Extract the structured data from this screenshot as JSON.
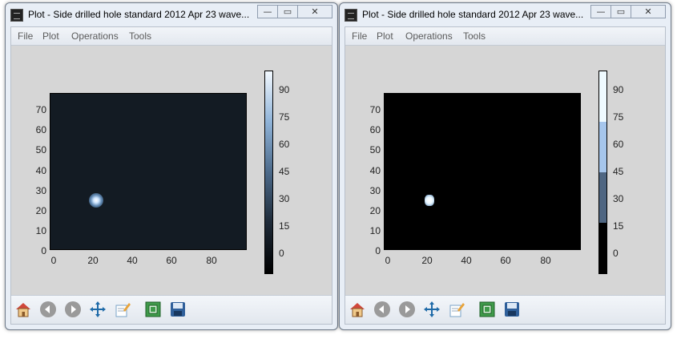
{
  "windows": [
    {
      "title": "Plot - Side drilled hole standard 2012 Apr 23 wave...",
      "controls": {
        "minimize": "—",
        "restore": "▭",
        "close": "✕"
      },
      "menu": [
        "File",
        "Plot",
        "Operations",
        "Tools"
      ],
      "plot": {
        "y_ticks": [
          "70",
          "60",
          "50",
          "40",
          "30",
          "20",
          "10",
          "0"
        ],
        "x_ticks": [
          "0",
          "20",
          "40",
          "60",
          "80"
        ],
        "colorbar_ticks": [
          "90",
          "75",
          "60",
          "45",
          "30",
          "15",
          "0"
        ]
      },
      "toolbar": [
        "home-icon",
        "back-icon",
        "forward-icon",
        "pan-icon",
        "edit-icon",
        "zoom-fit-icon",
        "save-icon"
      ]
    },
    {
      "title": "Plot - Side drilled hole standard 2012 Apr 23 wave...",
      "controls": {
        "minimize": "—",
        "restore": "▭",
        "close": "✕"
      },
      "menu": [
        "File",
        "Plot",
        "Operations",
        "Tools"
      ],
      "plot": {
        "y_ticks": [
          "70",
          "60",
          "50",
          "40",
          "30",
          "20",
          "10",
          "0"
        ],
        "x_ticks": [
          "0",
          "20",
          "40",
          "60",
          "80"
        ],
        "colorbar_ticks": [
          "90",
          "75",
          "60",
          "45",
          "30",
          "15",
          "0"
        ]
      },
      "toolbar": [
        "home-icon",
        "back-icon",
        "forward-icon",
        "pan-icon",
        "edit-icon",
        "zoom-fit-icon",
        "save-icon"
      ]
    }
  ],
  "colors": {
    "plot_bg_left": "#131b23",
    "plot_bg_right": "#000000",
    "hotspot": "#ffffff",
    "toolbar_icon_blue": "#1e6aa8"
  }
}
